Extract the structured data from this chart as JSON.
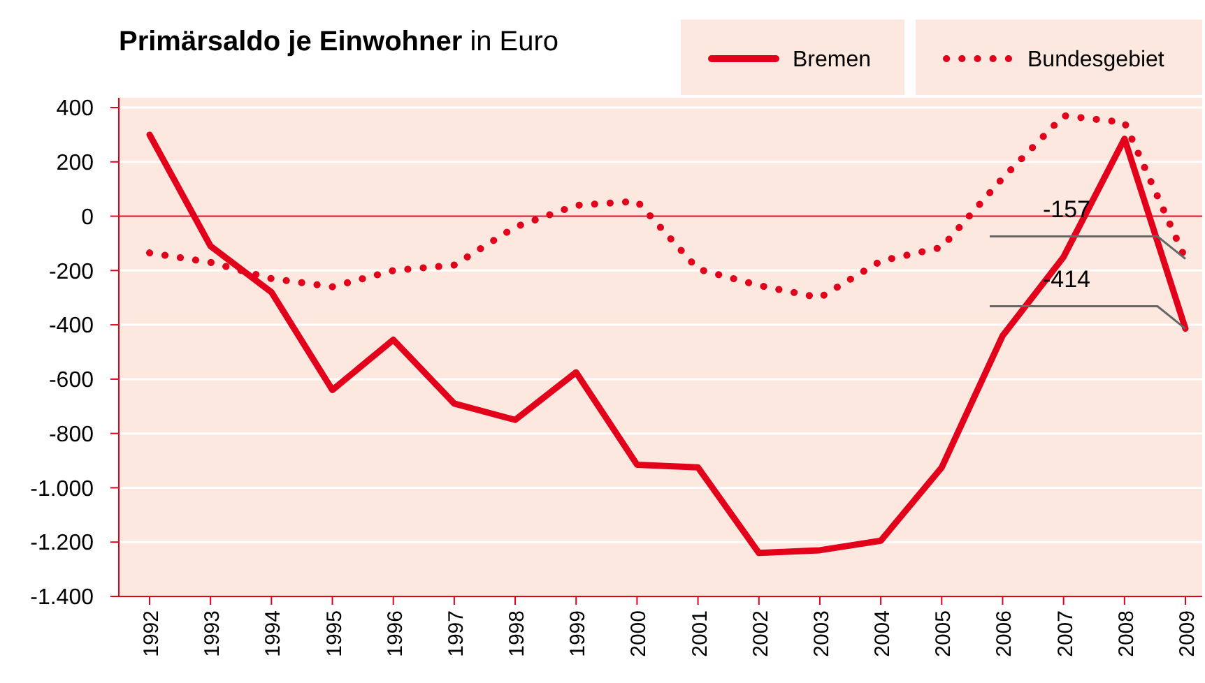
{
  "chart_data": {
    "type": "line",
    "title": "Primärsaldo je Einwohner",
    "subtitle": "in Euro",
    "categories": [
      "1992",
      "1993",
      "1994",
      "1995",
      "1996",
      "1997",
      "1998",
      "1999",
      "2000",
      "2001",
      "2002",
      "2003",
      "2004",
      "2005",
      "2006",
      "2007",
      "2008",
      "2009"
    ],
    "series": [
      {
        "name": "Bremen",
        "color": "#e2001a",
        "line_style": "solid",
        "values": [
          300,
          -110,
          -280,
          -640,
          -455,
          -690,
          -750,
          -575,
          -915,
          -925,
          -1240,
          -1230,
          -1195,
          -925,
          -440,
          -150,
          285,
          -414
        ]
      },
      {
        "name": "Bundesgebiet",
        "color": "#e2001a",
        "line_style": "dotted",
        "values": [
          -135,
          -170,
          -230,
          -260,
          -200,
          -180,
          -40,
          40,
          55,
          -195,
          -255,
          -300,
          -165,
          -115,
          140,
          370,
          345,
          -157
        ]
      }
    ],
    "ylim": [
      -1400,
      400
    ],
    "yticks": [
      {
        "value": -1400,
        "label": "-1.400"
      },
      {
        "value": -1200,
        "label": "-1.200"
      },
      {
        "value": -1000,
        "label": "-1.000"
      },
      -800,
      -600,
      -400,
      -200,
      0,
      200,
      400
    ],
    "grid": "y",
    "legend": "top right",
    "ref_lines": [
      {
        "axis": "y",
        "value": 0,
        "color": "#e2001a"
      }
    ],
    "annotations": [
      {
        "text": "-157",
        "x": "2009",
        "y": -157
      },
      {
        "text": "-414",
        "x": "2009",
        "y": -414
      }
    ]
  }
}
